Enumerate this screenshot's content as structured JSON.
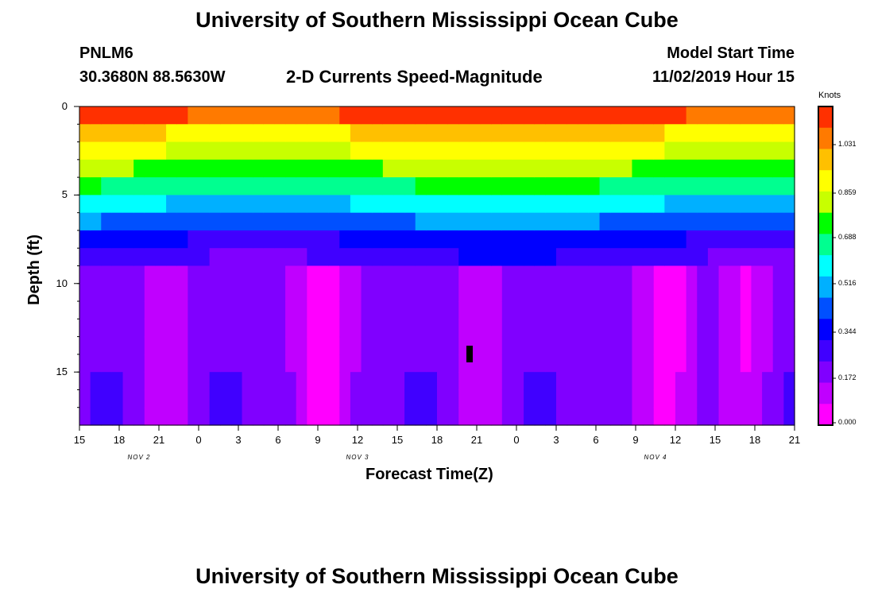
{
  "header": {
    "title_top": "University of Southern Mississippi Ocean Cube",
    "title_bottom": "University of Southern Mississippi Ocean Cube",
    "station_id": "PNLM6",
    "station_coords": "30.3680N 88.5630W",
    "plot_title": "2-D Currents Speed-Magnitude",
    "model_label": "Model Start Time",
    "model_time": "11/02/2019 Hour 15"
  },
  "colorbar": {
    "units": "Knots",
    "ticks": [
      "1.031",
      "0.859",
      "0.688",
      "0.516",
      "0.344",
      "0.172",
      "0.000"
    ],
    "colors": [
      "#ff3000",
      "#ff7a00",
      "#ffc000",
      "#ffff00",
      "#c8ff00",
      "#00ff00",
      "#00ff90",
      "#00ffff",
      "#00b0ff",
      "#0050ff",
      "#0000ff",
      "#4000ff",
      "#8000ff",
      "#c000ff",
      "#ff00ff"
    ]
  },
  "chart_data": {
    "type": "heatmap",
    "title": "2-D Currents Speed-Magnitude",
    "xlabel": "Forecast Time(Z)",
    "ylabel": "Depth (ft)",
    "x_tick_labels": [
      "15",
      "18",
      "21",
      "0",
      "3",
      "6",
      "9",
      "12",
      "15",
      "18",
      "21",
      "0",
      "3",
      "6",
      "9",
      "12",
      "15",
      "18",
      "21"
    ],
    "y_tick_labels": [
      "0",
      "5",
      "10",
      "15"
    ],
    "y_range": [
      0,
      18
    ],
    "date_labels": [
      "NOV 2",
      "NOV 3",
      "NOV 4"
    ],
    "value_range": [
      0.0,
      1.2
    ],
    "units": "Knots"
  }
}
